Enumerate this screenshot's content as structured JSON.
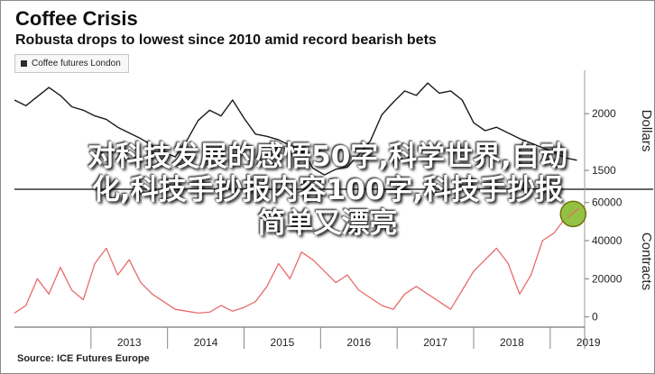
{
  "header": {
    "title": "Coffee Crisis",
    "subtitle": "Robusta drops to lowest since 2010 amid record bearish bets",
    "legend_label": "Coffee futures London",
    "source": "Source: ICE Futures Europe"
  },
  "overlay": {
    "line1": "对科技发展的感悟50字,科学世界,自动",
    "line2": "化,科技手抄报内容100字,科技手抄报",
    "line3": "简单又漂亮"
  },
  "colors": {
    "price_line": "#1a1a1a",
    "positions_line": "#e86b6b",
    "highlight_fill": "#8fbf3a",
    "highlight_stroke": "#6b6b00"
  },
  "chart_data": [
    {
      "type": "line",
      "title": "Coffee futures London",
      "ylabel": "Dollars",
      "ylim": [
        1350,
        2350
      ],
      "yticks": [
        1500,
        2000
      ],
      "xticks": [
        "2013",
        "2014",
        "2015",
        "2016",
        "2017",
        "2018",
        "2019"
      ],
      "x": [
        2012.0,
        2012.15,
        2012.3,
        2012.45,
        2012.6,
        2012.75,
        2012.9,
        2013.05,
        2013.2,
        2013.35,
        2013.5,
        2013.65,
        2013.8,
        2013.95,
        2014.1,
        2014.25,
        2014.4,
        2014.55,
        2014.7,
        2014.85,
        2015.0,
        2015.15,
        2015.3,
        2015.45,
        2015.6,
        2015.75,
        2015.9,
        2016.05,
        2016.2,
        2016.35,
        2016.5,
        2016.65,
        2016.8,
        2016.95,
        2017.1,
        2017.25,
        2017.4,
        2017.55,
        2017.7,
        2017.85,
        2018.0,
        2018.15,
        2018.3,
        2018.45,
        2018.6,
        2018.75,
        2018.9,
        2019.05,
        2019.2,
        2019.35
      ],
      "series": [
        {
          "values": [
            2120,
            2070,
            2150,
            2230,
            2160,
            2060,
            2030,
            1980,
            1950,
            1880,
            1830,
            1780,
            1720,
            1660,
            1620,
            1760,
            1940,
            2030,
            1980,
            2120,
            1960,
            1820,
            1800,
            1770,
            1720,
            1690,
            1520,
            1460,
            1510,
            1530,
            1640,
            1760,
            1990,
            2100,
            2200,
            2160,
            2270,
            2180,
            2200,
            2120,
            1920,
            1850,
            1880,
            1830,
            1780,
            1740,
            1700,
            1660,
            1610,
            1590
          ]
        }
      ]
    },
    {
      "type": "line",
      "title": "",
      "ylabel": "Contracts",
      "ylim": [
        -3000,
        66000
      ],
      "yticks": [
        0,
        20000,
        40000,
        60000
      ],
      "xticks": [
        "2013",
        "2014",
        "2015",
        "2016",
        "2017",
        "2018",
        "2019"
      ],
      "x": [
        2012.0,
        2012.15,
        2012.3,
        2012.45,
        2012.6,
        2012.75,
        2012.9,
        2013.05,
        2013.2,
        2013.35,
        2013.5,
        2013.65,
        2013.8,
        2013.95,
        2014.1,
        2014.25,
        2014.4,
        2014.55,
        2014.7,
        2014.85,
        2015.0,
        2015.15,
        2015.3,
        2015.45,
        2015.6,
        2015.75,
        2015.9,
        2016.05,
        2016.2,
        2016.35,
        2016.5,
        2016.65,
        2016.8,
        2016.95,
        2017.1,
        2017.25,
        2017.4,
        2017.55,
        2017.7,
        2017.85,
        2018.0,
        2018.15,
        2018.3,
        2018.45,
        2018.6,
        2018.75,
        2018.9,
        2019.05,
        2019.2,
        2019.35
      ],
      "series": [
        {
          "values": [
            2000,
            6000,
            20000,
            12000,
            26000,
            14000,
            9000,
            28000,
            36000,
            22000,
            30000,
            18000,
            12000,
            8000,
            4000,
            3000,
            2000,
            2500,
            6000,
            3000,
            5000,
            8000,
            16000,
            28000,
            20000,
            34000,
            30000,
            24000,
            18000,
            22000,
            14000,
            10000,
            6000,
            4000,
            12000,
            16000,
            12000,
            8000,
            4000,
            14000,
            24000,
            30000,
            36000,
            28000,
            12000,
            22000,
            40000,
            44000,
            52000,
            60000
          ]
        }
      ],
      "highlight_point": {
        "x": 2019.3,
        "y": 54000
      }
    }
  ]
}
